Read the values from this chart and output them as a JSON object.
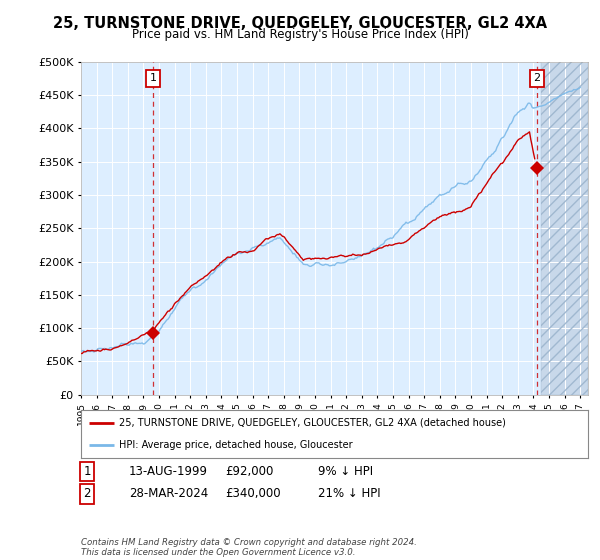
{
  "title": "25, TURNSTONE DRIVE, QUEDGELEY, GLOUCESTER, GL2 4XA",
  "subtitle": "Price paid vs. HM Land Registry's House Price Index (HPI)",
  "ylabel_ticks": [
    "£0",
    "£50K",
    "£100K",
    "£150K",
    "£200K",
    "£250K",
    "£300K",
    "£350K",
    "£400K",
    "£450K",
    "£500K"
  ],
  "ytick_values": [
    0,
    50000,
    100000,
    150000,
    200000,
    250000,
    300000,
    350000,
    400000,
    450000,
    500000
  ],
  "x_start_year": 1995,
  "x_end_year": 2027,
  "hpi_color": "#7ab8e8",
  "price_color": "#cc0000",
  "marker1_year": 1999.62,
  "marker1_price": 92000,
  "marker2_year": 2024.24,
  "marker2_price": 340000,
  "legend_label1": "25, TURNSTONE DRIVE, QUEDGELEY, GLOUCESTER, GL2 4XA (detached house)",
  "legend_label2": "HPI: Average price, detached house, Gloucester",
  "table_row1_label": "1",
  "table_row1_date": "13-AUG-1999",
  "table_row1_price": "£92,000",
  "table_row1_hpi": "9% ↓ HPI",
  "table_row2_label": "2",
  "table_row2_date": "28-MAR-2024",
  "table_row2_price": "£340,000",
  "table_row2_hpi": "21% ↓ HPI",
  "footer": "Contains HM Land Registry data © Crown copyright and database right 2024.\nThis data is licensed under the Open Government Licence v3.0.",
  "bg_color": "#ffffff",
  "plot_bg_color": "#ddeeff",
  "grid_color": "#ffffff",
  "hatch_region_color": "#c8d8ea",
  "ylim": [
    0,
    500000
  ],
  "n_months": 349
}
